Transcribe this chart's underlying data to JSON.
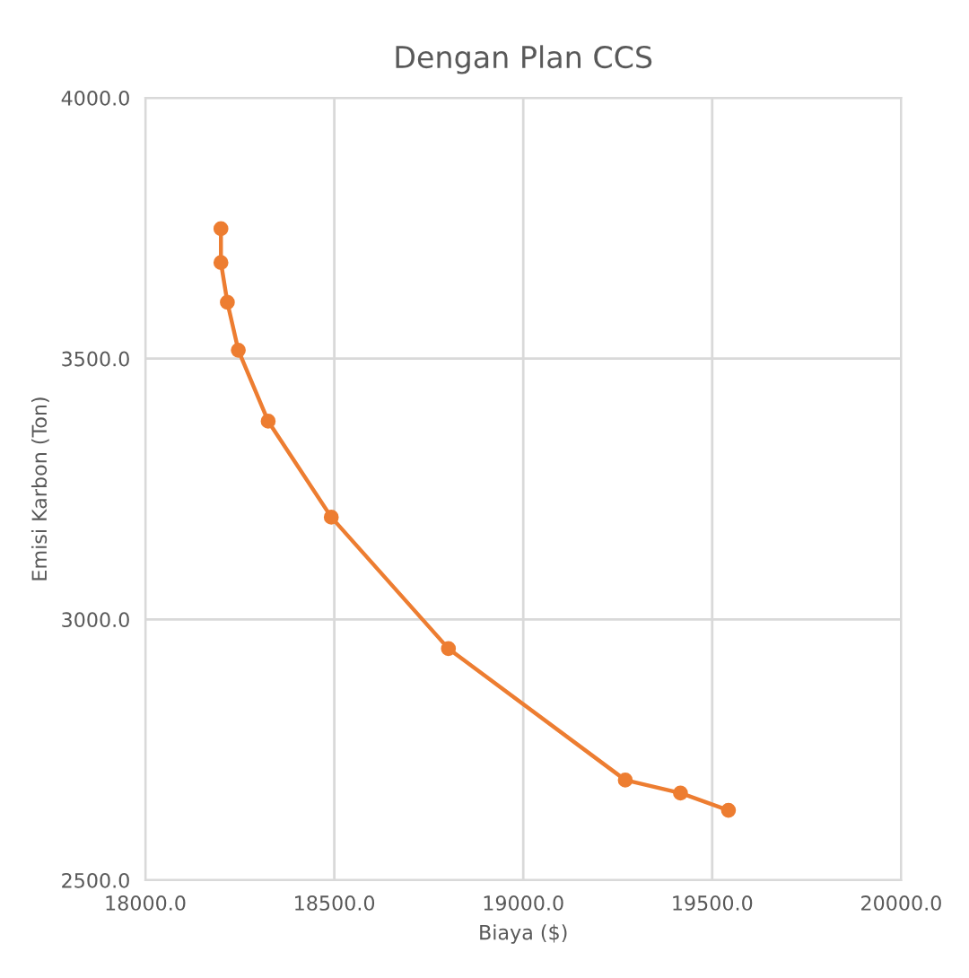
{
  "chart_data": {
    "type": "line",
    "title": "Dengan Plan CCS",
    "xlabel": "Biaya ($)",
    "ylabel": "Emisi Karbon (Ton)",
    "series": [
      {
        "color": "#ed7d31",
        "x": [
          18200,
          18200,
          18217,
          18246,
          18325,
          18492,
          18802,
          19270,
          19416,
          19543
        ],
        "values": [
          3749,
          3684,
          3608,
          3516,
          3380,
          3196,
          2944,
          2692,
          2667,
          2634
        ]
      }
    ],
    "xlim": [
      18000,
      20000
    ],
    "ylim": [
      2500,
      4000
    ],
    "xticks": [
      {
        "value": 18000,
        "label": "18000.0"
      },
      {
        "value": 18500,
        "label": "18500.0"
      },
      {
        "value": 19000,
        "label": "19000.0"
      },
      {
        "value": 19500,
        "label": "19500.0"
      },
      {
        "value": 20000,
        "label": "20000.0"
      }
    ],
    "yticks": [
      {
        "value": 2500,
        "label": "2500.0"
      },
      {
        "value": 3000,
        "label": "3000.0"
      },
      {
        "value": 3500,
        "label": "3500.0"
      },
      {
        "value": 4000,
        "label": "4000.0"
      }
    ],
    "grid": true,
    "marker": "circle",
    "line_style": "solid"
  }
}
